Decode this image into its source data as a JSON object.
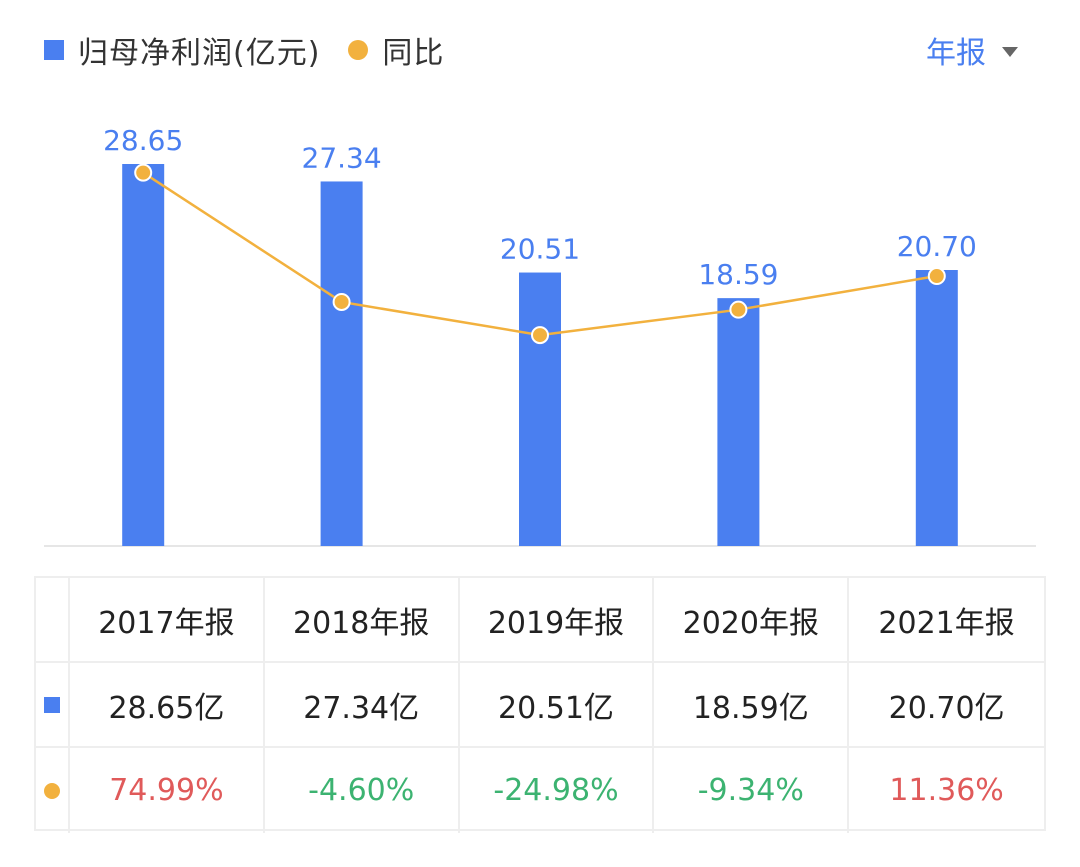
{
  "legend": {
    "bar_label": "归母净利润(亿元)",
    "line_label": "同比"
  },
  "period_select": {
    "label": "年报",
    "icon": "caret-down-icon"
  },
  "colors": {
    "bar": "#4a7ff0",
    "line": "#f2b13e",
    "positive": "#e05a5a",
    "negative": "#3cb371",
    "accent": "#4a7ff0"
  },
  "chart_data": {
    "type": "bar",
    "categories": [
      "2017年报",
      "2018年报",
      "2019年报",
      "2020年报",
      "2021年报"
    ],
    "series": [
      {
        "name": "归母净利润(亿元)",
        "type": "bar",
        "values": [
          28.65,
          27.34,
          20.51,
          18.59,
          20.7
        ],
        "labels": [
          "28.65",
          "27.34",
          "20.51",
          "18.59",
          "20.70"
        ]
      },
      {
        "name": "同比",
        "type": "line",
        "values": [
          74.99,
          -4.6,
          -24.98,
          -9.34,
          11.36
        ]
      }
    ],
    "bar_ylim": [
      0,
      28.65
    ],
    "line_ylim": [
      -100,
      100
    ],
    "grid": false
  },
  "table": {
    "headers": [
      "2017年报",
      "2018年报",
      "2019年报",
      "2020年报",
      "2021年报"
    ],
    "profit_row": [
      "28.65亿",
      "27.34亿",
      "20.51亿",
      "18.59亿",
      "20.70亿"
    ],
    "yoy_row": [
      "74.99%",
      "-4.60%",
      "-24.98%",
      "-9.34%",
      "11.36%"
    ]
  }
}
